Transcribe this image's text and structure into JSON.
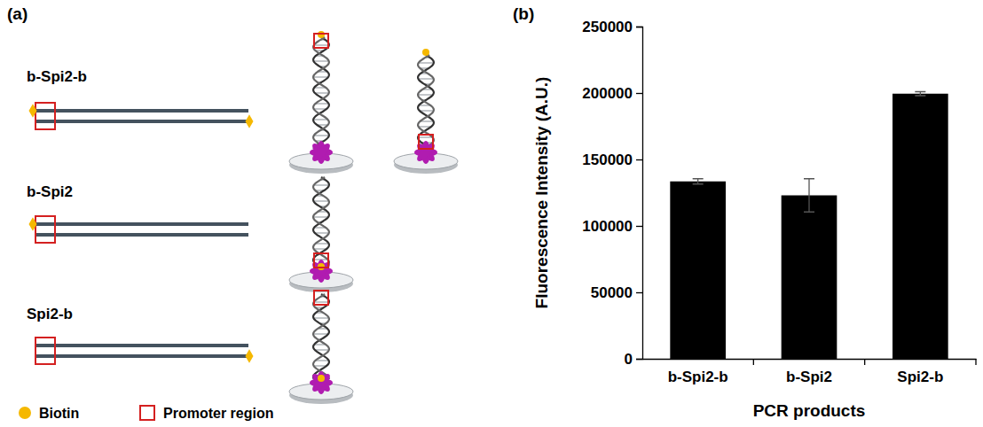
{
  "chart_data": {
    "type": "bar",
    "x_label": "PCR products",
    "y_label": "Fluorescence Intensity (A.U.)",
    "categories": [
      "b-Spi2-b",
      "b-Spi2",
      "Spi2-b"
    ],
    "values": [
      133500,
      123000,
      199500
    ],
    "errors": [
      2000,
      12500,
      1500
    ],
    "color": "#000000",
    "ylim": [
      0,
      250000
    ],
    "yticks": [
      0,
      50000,
      100000,
      150000,
      200000,
      250000
    ],
    "grid": false
  },
  "diagram": {
    "panel_labels": [
      "(a)",
      "(b)"
    ],
    "constructs": [
      {
        "label": "b-Spi2-b"
      },
      {
        "label": "b-Spi2"
      },
      {
        "label": "Spi2-b"
      }
    ],
    "key": [
      {
        "label": "Biotin"
      },
      {
        "label": "Promoter region"
      }
    ]
  }
}
